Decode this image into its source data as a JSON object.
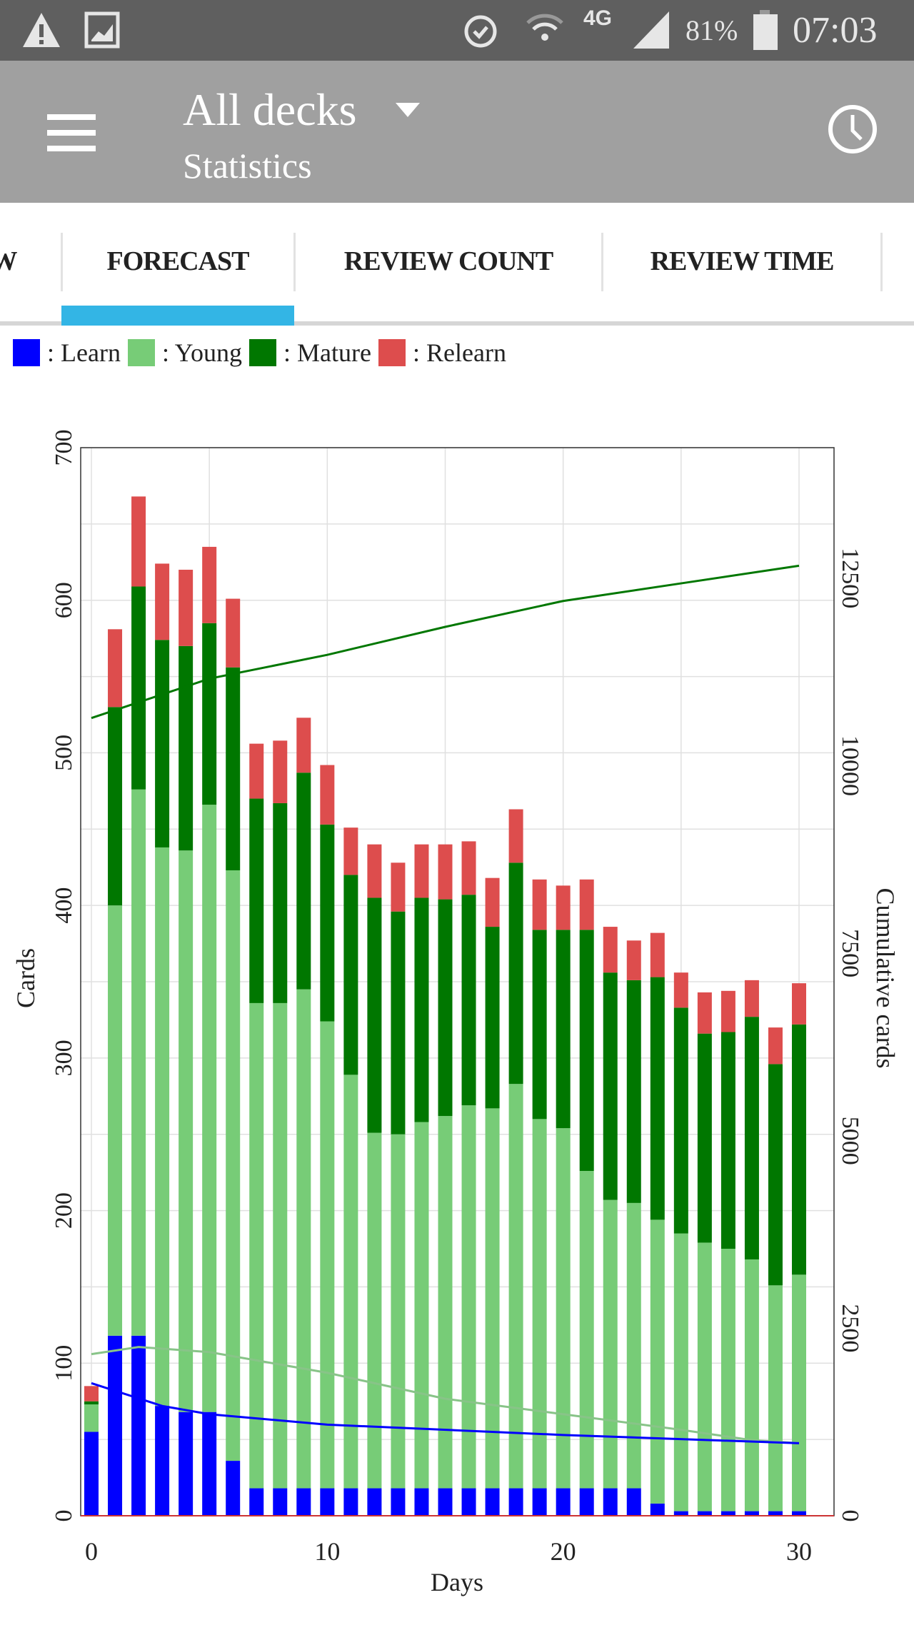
{
  "status_bar": {
    "battery": "81%",
    "time": "07:03",
    "network": "4G",
    "icons": [
      "warning-icon",
      "image-icon",
      "alarm-icon",
      "wifi-icon",
      "signal-icon",
      "battery-icon"
    ]
  },
  "toolbar": {
    "title": "All decks",
    "subtitle": "Statistics",
    "menu_icon": "menu-icon",
    "dropdown_icon": "dropdown-arrow-icon",
    "right_icon": "clock-icon"
  },
  "tabs": [
    {
      "label": "W"
    },
    {
      "label": "FORECAST",
      "active": true
    },
    {
      "label": "REVIEW COUNT"
    },
    {
      "label": "REVIEW TIME"
    }
  ],
  "colors": {
    "accent": "#33b5e5",
    "learn": "#0000ff",
    "young": "#77cc77",
    "mature": "#007700",
    "relearn": "#dd4d4d"
  },
  "legend": [
    {
      "label": "Learn",
      "color": "#0000ff"
    },
    {
      "label": "Young",
      "color": "#77cc77"
    },
    {
      "label": "Mature",
      "color": "#007700"
    },
    {
      "label": "Relearn",
      "color": "#dd4d4d"
    }
  ],
  "chart_data": {
    "type": "bar",
    "stacked": true,
    "xlabel": "Days",
    "ylabel": "Cards",
    "y2label": "Cumulative cards",
    "xlim": [
      0,
      30
    ],
    "ylim": [
      0,
      700
    ],
    "y2lim": [
      0,
      14240
    ],
    "xticks": [
      "0",
      "10",
      "20",
      "30"
    ],
    "yticks": [
      "0",
      "100",
      "200",
      "300",
      "400",
      "500",
      "600",
      "700"
    ],
    "y2ticks": [
      "0",
      "2500",
      "5000",
      "7500",
      "10000",
      "12500"
    ],
    "x": [
      0,
      1,
      2,
      3,
      4,
      5,
      6,
      7,
      8,
      9,
      10,
      11,
      12,
      13,
      14,
      15,
      16,
      17,
      18,
      19,
      20,
      21,
      22,
      23,
      24,
      25,
      26,
      27,
      28,
      29,
      30
    ],
    "series": [
      {
        "name": "Learn",
        "values": [
          55,
          118,
          118,
          72,
          68,
          68,
          36,
          18,
          18,
          18,
          18,
          18,
          18,
          18,
          18,
          18,
          18,
          18,
          18,
          18,
          18,
          18,
          18,
          18,
          8,
          3,
          3,
          3,
          3,
          3,
          3
        ]
      },
      {
        "name": "Young",
        "values": [
          18,
          282,
          358,
          366,
          368,
          398,
          387,
          318,
          318,
          327,
          306,
          271,
          233,
          232,
          240,
          244,
          251,
          249,
          265,
          242,
          236,
          208,
          189,
          187,
          186,
          182,
          176,
          172,
          165,
          148,
          155
        ]
      },
      {
        "name": "Mature",
        "values": [
          2,
          130,
          133,
          136,
          134,
          119,
          133,
          134,
          131,
          142,
          129,
          131,
          154,
          146,
          147,
          142,
          138,
          119,
          145,
          124,
          130,
          158,
          149,
          146,
          159,
          148,
          137,
          142,
          159,
          145,
          164
        ]
      },
      {
        "name": "Relearn",
        "values": [
          10,
          51,
          59,
          50,
          50,
          50,
          45,
          36,
          41,
          36,
          39,
          31,
          35,
          32,
          35,
          36,
          35,
          32,
          35,
          33,
          29,
          33,
          30,
          26,
          29,
          23,
          27,
          27,
          24,
          24,
          27
        ]
      }
    ],
    "cumulative_lines": [
      {
        "name": "Total cumulative",
        "color": "#007700",
        "x": [
          0,
          5,
          10,
          15,
          20,
          25,
          30
        ],
        "values": [
          10635,
          11160,
          11478,
          11851,
          12196,
          12431,
          12666
        ]
      },
      {
        "name": "Young cumulative",
        "color": "#88c488",
        "x": [
          0,
          2,
          5,
          10,
          15,
          20,
          25,
          28,
          30
        ],
        "values": [
          2155,
          2250,
          2182,
          1906,
          1560,
          1354,
          1146,
          1008,
          967
        ]
      },
      {
        "name": "Learn cumulative",
        "color": "#0000ff",
        "x": [
          0,
          3,
          5,
          10,
          20,
          30
        ],
        "values": [
          1768,
          1464,
          1354,
          1215,
          1077,
          967
        ]
      }
    ]
  }
}
